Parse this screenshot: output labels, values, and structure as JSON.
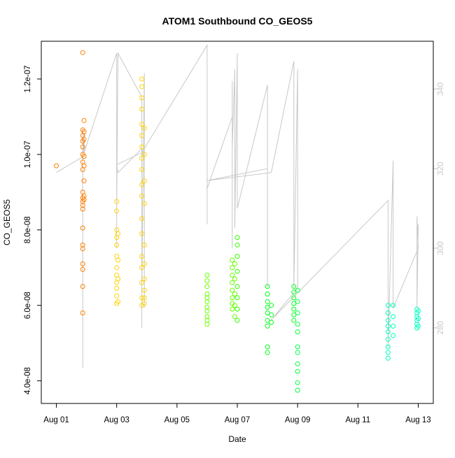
{
  "chart_data": {
    "type": "scatter",
    "title": "ATOM1 Southbound CO_GEOS5",
    "xlabel": "Date",
    "ylabel": "CO_GEOS5",
    "x_ticks": [
      "Aug 01",
      "Aug 03",
      "Aug 05",
      "Aug 07",
      "Aug 09",
      "Aug 11",
      "Aug 13"
    ],
    "y_ticks": [
      "4.0e-08",
      "6.0e-08",
      "8.0e-08",
      "1.0e-07",
      "1.2e-07"
    ],
    "y2_ticks": [
      "280",
      "300",
      "320",
      "340"
    ],
    "xlim": [
      "2016-07-31T12:00",
      "2016-08-13T12:00"
    ],
    "ylim": [
      3.4e-08,
      1.3e-07
    ],
    "y2lim": [
      261,
      352
    ],
    "grid": false,
    "colors": {
      "trace_line": "#c8c8c8",
      "day_points": [
        "#ff7f00",
        "#ff7f00",
        "#ffd400",
        "#e8ff00",
        "#b0ff00",
        "#66ff00",
        "#33ff00",
        "#00ff1a",
        "#00ff44",
        "#00ff6e",
        "#00ff99",
        "#00ffbb",
        "#00ffcc"
      ]
    },
    "series": [
      {
        "values": [
          [
            "2016-08-01T00:00",
            9.7e-08
          ],
          [
            "2016-08-01T21:00",
            1.27e-07
          ],
          [
            "2016-08-01T21:00",
            1.065e-07
          ],
          [
            "2016-08-01T21:00",
            1.05e-07
          ],
          [
            "2016-08-01T21:00",
            1.035e-07
          ],
          [
            "2016-08-01T21:00",
            1.02e-07
          ],
          [
            "2016-08-01T21:00",
            1e-07
          ],
          [
            "2016-08-01T21:00",
            9.8e-08
          ],
          [
            "2016-08-01T21:00",
            9.6e-08
          ],
          [
            "2016-08-01T21:00",
            9e-08
          ],
          [
            "2016-08-01T21:00",
            8.85e-08
          ],
          [
            "2016-08-01T21:00",
            8.75e-08
          ],
          [
            "2016-08-01T21:00",
            8.65e-08
          ],
          [
            "2016-08-01T21:00",
            8.55e-08
          ],
          [
            "2016-08-01T21:00",
            8.05e-08
          ],
          [
            "2016-08-01T21:00",
            7.6e-08
          ],
          [
            "2016-08-01T21:00",
            7.5e-08
          ],
          [
            "2016-08-01T21:00",
            7.1e-08
          ],
          [
            "2016-08-01T21:00",
            6.95e-08
          ],
          [
            "2016-08-01T21:00",
            6.5e-08
          ],
          [
            "2016-08-01T21:00",
            5.8e-08
          ],
          [
            "2016-08-01T22:00",
            1.09e-07
          ],
          [
            "2016-08-01T22:00",
            1.06e-07
          ],
          [
            "2016-08-01T22:00",
            1.04e-07
          ],
          [
            "2016-08-01T22:00",
            9.95e-08
          ],
          [
            "2016-08-01T22:00",
            9.7e-08
          ],
          [
            "2016-08-01T22:00",
            9.3e-08
          ],
          [
            "2016-08-01T22:00",
            8.9e-08
          ],
          [
            "2016-08-01T22:00",
            8.8e-08
          ]
        ]
      },
      {
        "values": [
          [
            "2016-08-03T00:00",
            8.75e-08
          ],
          [
            "2016-08-03T00:00",
            8.5e-08
          ],
          [
            "2016-08-03T00:00",
            8e-08
          ],
          [
            "2016-08-03T00:00",
            7.8e-08
          ],
          [
            "2016-08-03T00:00",
            7.6e-08
          ],
          [
            "2016-08-03T00:00",
            7.3e-08
          ],
          [
            "2016-08-03T00:00",
            7e-08
          ],
          [
            "2016-08-03T00:00",
            6.8e-08
          ],
          [
            "2016-08-03T00:00",
            6.6e-08
          ],
          [
            "2016-08-03T00:00",
            6.45e-08
          ],
          [
            "2016-08-03T00:00",
            6.25e-08
          ],
          [
            "2016-08-03T00:00",
            6.05e-08
          ],
          [
            "2016-08-03T01:00",
            7.9e-08
          ],
          [
            "2016-08-03T01:00",
            7.2e-08
          ],
          [
            "2016-08-03T01:00",
            6.7e-08
          ],
          [
            "2016-08-03T01:00",
            6.1e-08
          ]
        ]
      },
      {
        "values": [
          [
            "2016-08-03T20:00",
            1.2e-07
          ],
          [
            "2016-08-03T20:00",
            1.18e-07
          ],
          [
            "2016-08-03T20:00",
            1.15e-07
          ],
          [
            "2016-08-03T20:00",
            1.12e-07
          ],
          [
            "2016-08-03T20:00",
            1.08e-07
          ],
          [
            "2016-08-03T20:00",
            1.05e-07
          ],
          [
            "2016-08-03T20:00",
            1.02e-07
          ],
          [
            "2016-08-03T20:00",
            9.9e-08
          ],
          [
            "2016-08-03T20:00",
            9.6e-08
          ],
          [
            "2016-08-03T20:00",
            9.2e-08
          ],
          [
            "2016-08-03T20:00",
            8.9e-08
          ],
          [
            "2016-08-03T20:00",
            8.3e-08
          ],
          [
            "2016-08-03T20:00",
            7.9e-08
          ],
          [
            "2016-08-03T20:00",
            7.3e-08
          ],
          [
            "2016-08-03T20:00",
            7e-08
          ],
          [
            "2016-08-03T20:00",
            6.6e-08
          ],
          [
            "2016-08-03T20:00",
            6.2e-08
          ],
          [
            "2016-08-03T20:00",
            6e-08
          ],
          [
            "2016-08-03T22:00",
            1.07e-07
          ],
          [
            "2016-08-03T22:00",
            1e-07
          ],
          [
            "2016-08-03T22:00",
            9.3e-08
          ],
          [
            "2016-08-03T22:00",
            8.7e-08
          ],
          [
            "2016-08-03T22:00",
            7.6e-08
          ],
          [
            "2016-08-03T22:00",
            7.1e-08
          ],
          [
            "2016-08-03T22:00",
            6.7e-08
          ],
          [
            "2016-08-03T22:00",
            6.4e-08
          ],
          [
            "2016-08-03T22:00",
            6.2e-08
          ],
          [
            "2016-08-03T22:00",
            6.05e-08
          ]
        ]
      },
      {
        "values": [
          [
            "2016-08-06T00:00",
            6.8e-08
          ],
          [
            "2016-08-06T00:00",
            6.65e-08
          ],
          [
            "2016-08-06T00:00",
            6.5e-08
          ],
          [
            "2016-08-06T00:00",
            6.3e-08
          ],
          [
            "2016-08-06T00:00",
            6.2e-08
          ],
          [
            "2016-08-06T00:00",
            6.1e-08
          ],
          [
            "2016-08-06T00:00",
            5.95e-08
          ],
          [
            "2016-08-06T00:00",
            5.85e-08
          ],
          [
            "2016-08-06T00:00",
            5.7e-08
          ],
          [
            "2016-08-06T00:00",
            5.6e-08
          ],
          [
            "2016-08-06T00:00",
            5.5e-08
          ]
        ]
      },
      {
        "values": [
          [
            "2016-08-06T20:00",
            7.2e-08
          ],
          [
            "2016-08-06T20:00",
            7e-08
          ],
          [
            "2016-08-06T20:00",
            6.8e-08
          ],
          [
            "2016-08-06T20:00",
            6.6e-08
          ],
          [
            "2016-08-06T20:00",
            6.4e-08
          ],
          [
            "2016-08-06T20:00",
            6.2e-08
          ],
          [
            "2016-08-06T20:00",
            6.05e-08
          ],
          [
            "2016-08-06T20:00",
            5.9e-08
          ],
          [
            "2016-08-06T22:00",
            7.1e-08
          ],
          [
            "2016-08-06T22:00",
            6.7e-08
          ],
          [
            "2016-08-06T22:00",
            6.3e-08
          ],
          [
            "2016-08-06T22:00",
            6e-08
          ],
          [
            "2016-08-06T22:00",
            5.7e-08
          ],
          [
            "2016-08-07T00:00",
            7.8e-08
          ],
          [
            "2016-08-07T00:00",
            7.6e-08
          ],
          [
            "2016-08-07T00:00",
            7.3e-08
          ],
          [
            "2016-08-07T00:00",
            6.9e-08
          ],
          [
            "2016-08-07T00:00",
            6.5e-08
          ],
          [
            "2016-08-07T00:00",
            6.2e-08
          ],
          [
            "2016-08-07T00:00",
            5.9e-08
          ],
          [
            "2016-08-07T00:00",
            5.6e-08
          ]
        ]
      },
      {
        "values": [
          [
            "2016-08-08T00:00",
            6.5e-08
          ],
          [
            "2016-08-08T00:00",
            6.3e-08
          ],
          [
            "2016-08-08T00:00",
            6.1e-08
          ],
          [
            "2016-08-08T00:00",
            5.95e-08
          ],
          [
            "2016-08-08T00:00",
            5.8e-08
          ],
          [
            "2016-08-08T00:00",
            5.6e-08
          ],
          [
            "2016-08-08T00:00",
            5.45e-08
          ],
          [
            "2016-08-08T00:00",
            4.9e-08
          ],
          [
            "2016-08-08T00:00",
            4.75e-08
          ],
          [
            "2016-08-08T03:00",
            6e-08
          ],
          [
            "2016-08-08T03:00",
            5.75e-08
          ],
          [
            "2016-08-08T03:00",
            5.55e-08
          ]
        ]
      },
      {
        "values": [
          [
            "2016-08-08T21:00",
            6.5e-08
          ],
          [
            "2016-08-08T21:00",
            6.35e-08
          ],
          [
            "2016-08-08T21:00",
            6.2e-08
          ],
          [
            "2016-08-08T21:00",
            6.05e-08
          ],
          [
            "2016-08-08T21:00",
            5.9e-08
          ],
          [
            "2016-08-08T21:00",
            5.75e-08
          ],
          [
            "2016-08-08T21:00",
            5.6e-08
          ],
          [
            "2016-08-09T00:00",
            6.4e-08
          ],
          [
            "2016-08-09T00:00",
            6.1e-08
          ],
          [
            "2016-08-09T00:00",
            5.8e-08
          ],
          [
            "2016-08-09T00:00",
            5.5e-08
          ],
          [
            "2016-08-09T00:00",
            5.3e-08
          ],
          [
            "2016-08-09T00:00",
            4.9e-08
          ],
          [
            "2016-08-09T00:00",
            4.75e-08
          ],
          [
            "2016-08-09T00:00",
            4.45e-08
          ],
          [
            "2016-08-09T00:00",
            4.25e-08
          ],
          [
            "2016-08-09T00:00",
            3.95e-08
          ],
          [
            "2016-08-09T00:00",
            3.75e-08
          ]
        ]
      },
      {
        "values": [
          [
            "2016-08-12T00:00",
            6e-08
          ],
          [
            "2016-08-12T00:00",
            5.8e-08
          ],
          [
            "2016-08-12T00:00",
            5.6e-08
          ],
          [
            "2016-08-12T00:00",
            5.45e-08
          ],
          [
            "2016-08-12T00:00",
            5.3e-08
          ],
          [
            "2016-08-12T00:00",
            5.1e-08
          ],
          [
            "2016-08-12T00:00",
            4.9e-08
          ],
          [
            "2016-08-12T00:00",
            4.75e-08
          ],
          [
            "2016-08-12T00:00",
            4.6e-08
          ],
          [
            "2016-08-12T04:00",
            6e-08
          ],
          [
            "2016-08-12T04:00",
            5.7e-08
          ],
          [
            "2016-08-12T04:00",
            5.45e-08
          ],
          [
            "2016-08-12T04:00",
            5.2e-08
          ]
        ]
      },
      {
        "values": [
          [
            "2016-08-12T23:00",
            5.9e-08
          ],
          [
            "2016-08-12T23:00",
            5.8e-08
          ],
          [
            "2016-08-12T23:00",
            5.7e-08
          ],
          [
            "2016-08-12T23:00",
            5.6e-08
          ],
          [
            "2016-08-12T23:00",
            5.5e-08
          ],
          [
            "2016-08-12T23:00",
            5.4e-08
          ],
          [
            "2016-08-13T00:00",
            5.85e-08
          ],
          [
            "2016-08-13T00:00",
            5.65e-08
          ],
          [
            "2016-08-13T00:00",
            5.45e-08
          ]
        ]
      }
    ],
    "secondary_trace": {
      "values": [
        [
          "2016-08-01T00:00",
          319
        ],
        [
          "2016-08-01T21:00",
          323
        ],
        [
          "2016-08-01T21:00",
          275
        ],
        [
          "2016-08-01T21:00",
          270
        ],
        [
          "2016-08-01T21:00",
          300
        ],
        [
          "2016-08-01T21:00",
          330
        ],
        [
          "2016-08-01T21:00",
          317
        ],
        [
          "2016-08-01T21:00",
          323
        ],
        [
          "2016-08-01T22:00",
          329
        ],
        [
          "2016-08-01T22:00",
          324
        ],
        [
          "2016-08-03T00:00",
          349
        ],
        [
          "2016-08-03T00:00",
          300
        ],
        [
          "2016-08-03T00:00",
          325
        ],
        [
          "2016-08-03T00:00",
          310
        ],
        [
          "2016-08-03T01:00",
          349
        ],
        [
          "2016-08-03T20:00",
          338
        ],
        [
          "2016-08-03T20:00",
          280
        ],
        [
          "2016-08-03T20:00",
          331
        ],
        [
          "2016-08-03T20:00",
          290
        ],
        [
          "2016-08-03T22:00",
          344
        ],
        [
          "2016-08-03T22:00",
          285
        ],
        [
          "2016-08-03T22:00",
          322
        ],
        [
          "2016-08-03T20:00",
          325
        ],
        [
          "2016-08-03T01:00",
          319
        ],
        [
          "2016-08-03T00:00",
          321
        ],
        [
          "2016-08-03T20:00",
          324
        ],
        [
          "2016-08-06T00:00",
          351
        ],
        [
          "2016-08-06T00:00",
          306
        ],
        [
          "2016-08-06T00:00",
          343
        ],
        [
          "2016-08-06T00:00",
          322
        ],
        [
          "2016-08-06T00:00",
          315
        ],
        [
          "2016-08-06T20:00",
          333
        ],
        [
          "2016-08-06T20:00",
          300
        ],
        [
          "2016-08-06T20:00",
          342
        ],
        [
          "2016-08-06T20:00",
          325
        ],
        [
          "2016-08-06T22:00",
          345
        ],
        [
          "2016-08-06T22:00",
          305
        ],
        [
          "2016-08-07T00:00",
          349
        ],
        [
          "2016-08-07T00:00",
          310
        ],
        [
          "2016-08-08T00:00",
          341
        ],
        [
          "2016-08-08T00:00",
          290
        ],
        [
          "2016-08-08T00:00",
          320
        ],
        [
          "2016-08-06T00:00",
          317
        ],
        [
          "2016-08-08T03:00",
          319
        ],
        [
          "2016-08-08T21:00",
          347
        ],
        [
          "2016-08-08T21:00",
          290
        ],
        [
          "2016-08-09T00:00",
          345
        ],
        [
          "2016-08-09T00:00",
          290
        ],
        [
          "2016-08-08T03:00",
          282
        ],
        [
          "2016-08-12T00:00",
          312
        ],
        [
          "2016-08-12T00:00",
          275
        ],
        [
          "2016-08-12T04:00",
          322
        ],
        [
          "2016-08-12T04:00",
          285
        ],
        [
          "2016-08-13T00:00",
          300
        ],
        [
          "2016-08-12T23:00",
          308
        ],
        [
          "2016-08-12T23:00",
          285
        ],
        [
          "2016-08-13T00:00",
          306
        ]
      ]
    }
  }
}
